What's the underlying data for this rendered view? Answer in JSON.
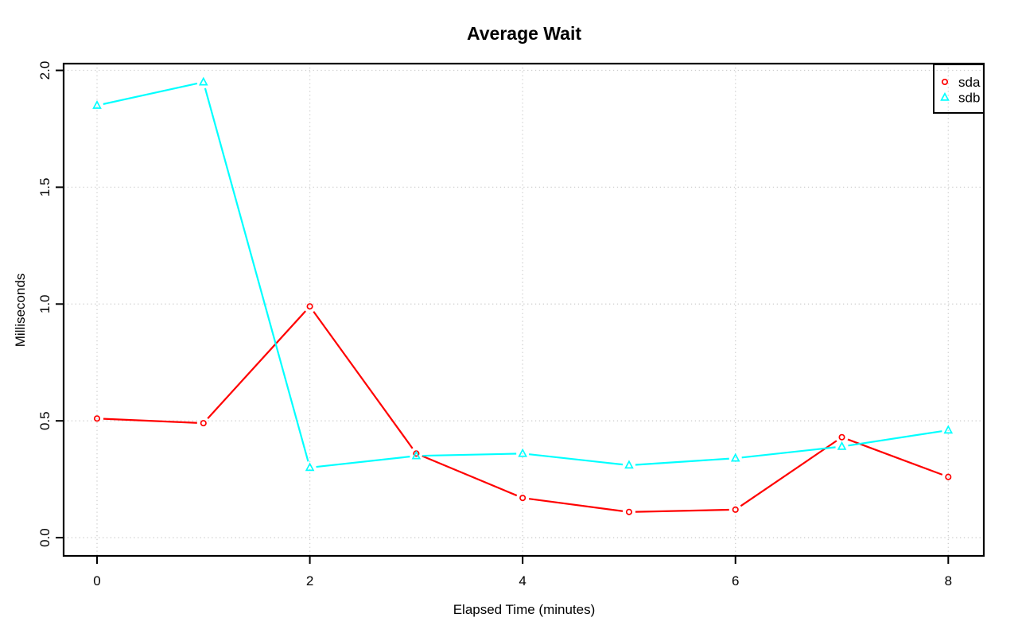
{
  "chart_data": {
    "type": "line",
    "title": "Average Wait",
    "xlabel": "Elapsed Time (minutes)",
    "ylabel": "Milliseconds",
    "x": [
      0,
      1,
      2,
      3,
      4,
      5,
      6,
      7,
      8
    ],
    "series": [
      {
        "name": "sda",
        "color": "#FF0000",
        "marker": "circle",
        "values": [
          0.51,
          0.49,
          0.99,
          0.36,
          0.17,
          0.11,
          0.12,
          0.43,
          0.26
        ]
      },
      {
        "name": "sdb",
        "color": "#00FFFF",
        "marker": "triangle",
        "values": [
          1.85,
          1.95,
          0.3,
          0.35,
          0.36,
          0.31,
          0.34,
          0.39,
          0.46
        ]
      }
    ],
    "xtick_labels": [
      "0",
      "2",
      "4",
      "6",
      "8"
    ],
    "xtick_values": [
      0,
      2,
      4,
      6,
      8
    ],
    "ytick_labels": [
      "0.0",
      "0.5",
      "1.0",
      "1.5",
      "2.0"
    ],
    "ytick_values": [
      0,
      0.5,
      1,
      1.5,
      2
    ],
    "xlim": [
      -0.314,
      8.334
    ],
    "ylim": [
      -0.078,
      2.029
    ],
    "grid": true,
    "grid_color": "#CFCFCF",
    "frame_color": "#000000",
    "legend": {
      "position": "topright",
      "entries": [
        "sda",
        "sdb"
      ]
    }
  }
}
